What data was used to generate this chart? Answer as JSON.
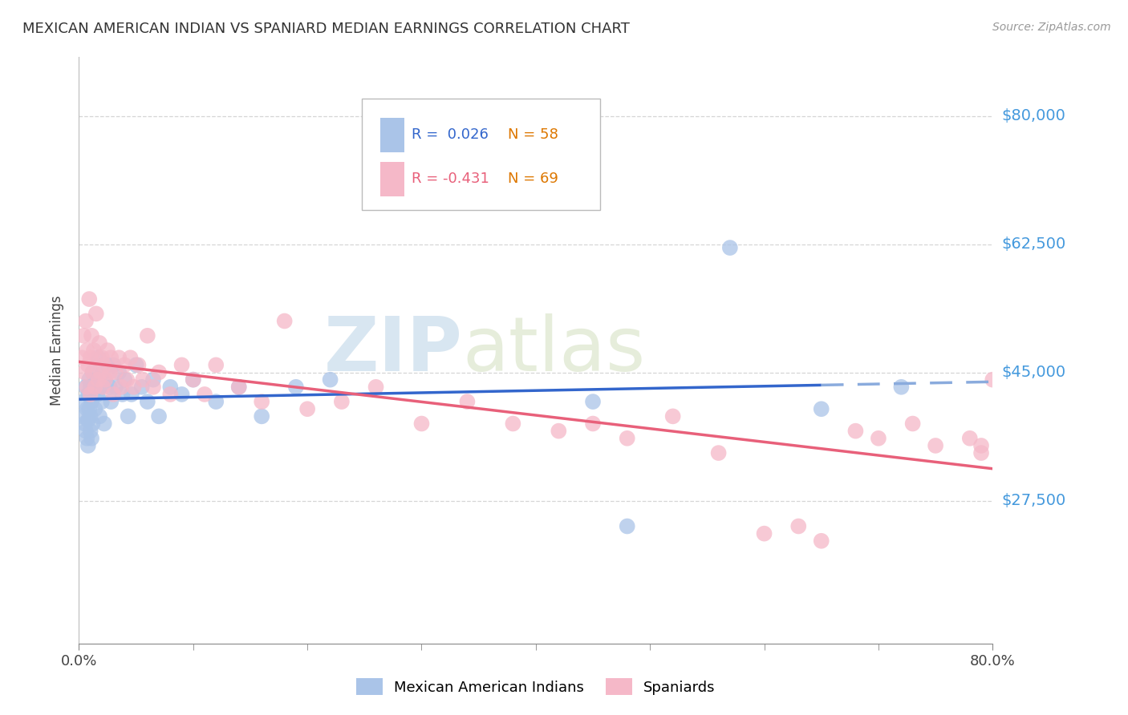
{
  "title": "MEXICAN AMERICAN INDIAN VS SPANIARD MEDIAN EARNINGS CORRELATION CHART",
  "source": "Source: ZipAtlas.com",
  "ylabel": "Median Earnings",
  "watermark_zip": "ZIP",
  "watermark_atlas": "atlas",
  "blue_R": 0.026,
  "blue_N": 58,
  "pink_R": -0.431,
  "pink_N": 69,
  "blue_label": "Mexican American Indians",
  "pink_label": "Spaniards",
  "xmin": 0.0,
  "xmax": 0.8,
  "ymin": 8000,
  "ymax": 88000,
  "yticks": [
    27500,
    45000,
    62500,
    80000
  ],
  "ytick_labels": [
    "$27,500",
    "$45,000",
    "$62,500",
    "$80,000"
  ],
  "xtick_positions": [
    0.0,
    0.8
  ],
  "xtick_labels": [
    "0.0%",
    "80.0%"
  ],
  "blue_color": "#aac4e8",
  "pink_color": "#f5b8c8",
  "blue_line_color": "#3366cc",
  "blue_line_dash_color": "#8aabdd",
  "pink_line_color": "#e8607a",
  "grid_color": "#cccccc",
  "right_label_color": "#4499dd",
  "title_color": "#333333",
  "blue_x": [
    0.003,
    0.004,
    0.005,
    0.006,
    0.006,
    0.007,
    0.007,
    0.008,
    0.008,
    0.008,
    0.009,
    0.009,
    0.01,
    0.01,
    0.01,
    0.011,
    0.011,
    0.012,
    0.012,
    0.013,
    0.014,
    0.015,
    0.016,
    0.017,
    0.018,
    0.019,
    0.02,
    0.021,
    0.022,
    0.023,
    0.025,
    0.027,
    0.028,
    0.03,
    0.032,
    0.035,
    0.038,
    0.04,
    0.043,
    0.046,
    0.05,
    0.055,
    0.06,
    0.065,
    0.07,
    0.08,
    0.09,
    0.1,
    0.12,
    0.14,
    0.16,
    0.19,
    0.22,
    0.45,
    0.48,
    0.57,
    0.65,
    0.72
  ],
  "blue_y": [
    39000,
    41000,
    38000,
    43000,
    37000,
    40000,
    36000,
    42000,
    38500,
    35000,
    44000,
    40000,
    37000,
    43000,
    39000,
    41000,
    36000,
    45000,
    38000,
    43000,
    40000,
    44000,
    42000,
    47000,
    39000,
    43000,
    41000,
    45000,
    38000,
    44000,
    46000,
    43000,
    41000,
    46000,
    43000,
    45000,
    42000,
    44000,
    39000,
    42000,
    46000,
    43000,
    41000,
    44000,
    39000,
    43000,
    42000,
    44000,
    41000,
    43000,
    39000,
    43000,
    44000,
    41000,
    24000,
    62000,
    40000,
    43000
  ],
  "pink_x": [
    0.003,
    0.004,
    0.005,
    0.006,
    0.007,
    0.007,
    0.008,
    0.009,
    0.01,
    0.01,
    0.011,
    0.012,
    0.013,
    0.014,
    0.015,
    0.016,
    0.017,
    0.018,
    0.019,
    0.02,
    0.021,
    0.022,
    0.023,
    0.025,
    0.027,
    0.028,
    0.03,
    0.032,
    0.035,
    0.037,
    0.04,
    0.042,
    0.045,
    0.048,
    0.052,
    0.056,
    0.06,
    0.065,
    0.07,
    0.08,
    0.09,
    0.1,
    0.11,
    0.12,
    0.14,
    0.16,
    0.18,
    0.2,
    0.23,
    0.26,
    0.3,
    0.34,
    0.38,
    0.42,
    0.45,
    0.48,
    0.52,
    0.56,
    0.6,
    0.63,
    0.65,
    0.68,
    0.7,
    0.73,
    0.75,
    0.78,
    0.79,
    0.79,
    0.8
  ],
  "pink_y": [
    47000,
    50000,
    45000,
    52000,
    48000,
    43000,
    46000,
    55000,
    47000,
    42000,
    50000,
    45000,
    48000,
    43000,
    53000,
    47000,
    44000,
    49000,
    45000,
    47000,
    43000,
    46000,
    44000,
    48000,
    45000,
    47000,
    42000,
    45000,
    47000,
    43000,
    46000,
    44000,
    47000,
    43000,
    46000,
    44000,
    50000,
    43000,
    45000,
    42000,
    46000,
    44000,
    42000,
    46000,
    43000,
    41000,
    52000,
    40000,
    41000,
    43000,
    38000,
    41000,
    38000,
    37000,
    38000,
    36000,
    39000,
    34000,
    23000,
    24000,
    22000,
    37000,
    36000,
    38000,
    35000,
    36000,
    35000,
    34000,
    44000
  ]
}
